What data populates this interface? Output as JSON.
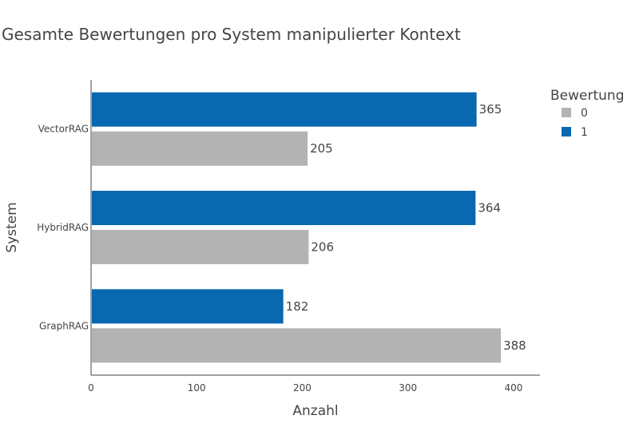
{
  "chart_data": {
    "type": "bar",
    "orientation": "horizontal",
    "title": "Gesamte Bewertungen pro System manipulierter Kontext",
    "xlabel": "Anzahl",
    "ylabel": "System",
    "categories": [
      "VectorRAG",
      "HybridRAG",
      "GraphRAG"
    ],
    "series": [
      {
        "name": "1",
        "color": "#0868b0",
        "values": [
          365,
          364,
          182
        ]
      },
      {
        "name": "0",
        "color": "#b3b3b3",
        "values": [
          205,
          206,
          388
        ]
      }
    ],
    "xlim": [
      0,
      425
    ],
    "xticks": [
      0,
      100,
      200,
      300,
      400
    ],
    "legend": {
      "title": "Bewertung",
      "position": "top-right",
      "entries": [
        "0",
        "1"
      ]
    },
    "grid": false
  }
}
